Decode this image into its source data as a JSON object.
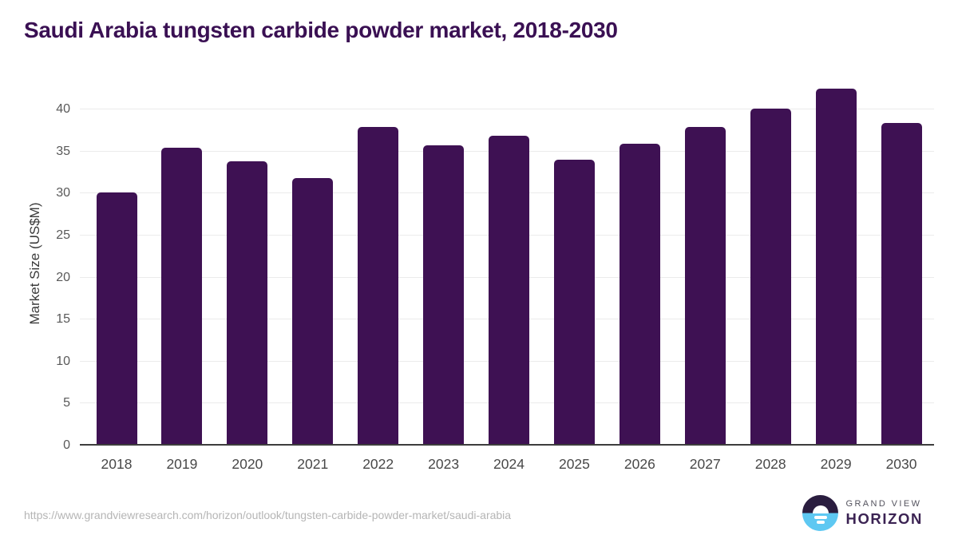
{
  "title": "Saudi Arabia tungsten carbide powder market, 2018-2030",
  "chart_data": {
    "type": "bar",
    "title": "Saudi Arabia tungsten carbide powder market, 2018-2030",
    "categories": [
      "2018",
      "2019",
      "2020",
      "2021",
      "2022",
      "2023",
      "2024",
      "2025",
      "2026",
      "2027",
      "2028",
      "2029",
      "2030"
    ],
    "values": [
      30.1,
      35.5,
      33.8,
      31.8,
      37.9,
      35.7,
      36.9,
      34.0,
      35.9,
      37.9,
      40.1,
      42.5,
      38.4
    ],
    "xlabel": "",
    "ylabel": "Market Size (US$M)",
    "ylim": [
      0,
      43.5
    ],
    "yticks": [
      0,
      5,
      10,
      15,
      20,
      25,
      30,
      35,
      40
    ],
    "grid": true,
    "legend": false,
    "bar_color": "#3e1153"
  },
  "footer": {
    "source_url": "https://www.grandviewresearch.com/horizon/outlook/tungsten-carbide-powder-market/saudi-arabia",
    "logo": {
      "brand_top": "GRAND VIEW",
      "brand_bottom": "HORIZON"
    }
  },
  "colors": {
    "title": "#3a1053",
    "bar": "#3e1153",
    "logo_dark": "#2a1d3f",
    "logo_blue": "#5ec8f2"
  }
}
